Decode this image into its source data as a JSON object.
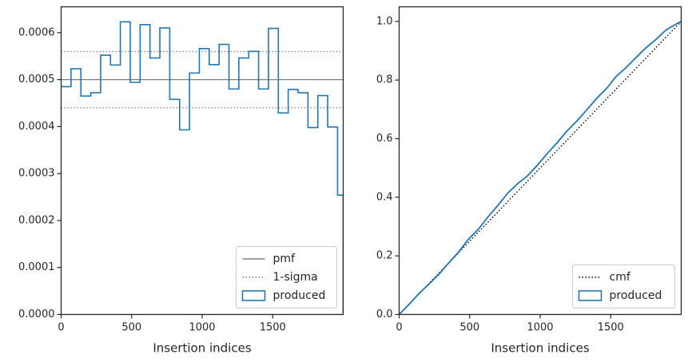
{
  "chart_data": [
    {
      "type": "step",
      "xlabel": "Insertion indices",
      "ylabel": "",
      "xlim": [
        0,
        2000
      ],
      "ylim": [
        0,
        0.000655
      ],
      "xticks": [
        0,
        500,
        1000,
        1500
      ],
      "xtick_labels": [
        "0",
        "500",
        "1000",
        "1500"
      ],
      "yticks": [
        0,
        0.0001,
        0.0002,
        0.0003,
        0.0004,
        0.0005,
        0.0006
      ],
      "ytick_labels": [
        "0.0000",
        "0.0001",
        "0.0002",
        "0.0003",
        "0.0004",
        "0.0005",
        "0.0006"
      ],
      "legend_position": "lower-right",
      "bin_edges": [
        0,
        70,
        140,
        210,
        280,
        350,
        420,
        490,
        560,
        630,
        700,
        770,
        840,
        910,
        980,
        1050,
        1120,
        1190,
        1260,
        1330,
        1400,
        1470,
        1540,
        1610,
        1680,
        1750,
        1820,
        1890,
        1960,
        2000
      ],
      "hlines": [
        {
          "name": "pmf",
          "value": 0.0005,
          "style": "solid",
          "color": "#808080"
        },
        {
          "name": "1-sigma",
          "value": 0.00056,
          "style": "dotted",
          "color": "#808080"
        },
        {
          "name": "1-sigma",
          "value": 0.00044,
          "style": "dotted",
          "color": "#808080"
        }
      ],
      "series": [
        {
          "name": "produced",
          "color": "#1f77b4",
          "values": [
            0.000485,
            0.000523,
            0.000465,
            0.000472,
            0.000552,
            0.000531,
            0.000623,
            0.000494,
            0.000617,
            0.000546,
            0.00061,
            0.000458,
            0.000393,
            0.000514,
            0.000566,
            0.000532,
            0.000575,
            0.00048,
            0.000546,
            0.00056,
            0.00048,
            0.000609,
            0.000429,
            0.000479,
            0.000472,
            0.000398,
            0.000466,
            0.000399,
            0.000254
          ]
        }
      ],
      "legend": [
        {
          "label": "pmf",
          "kind": "solid-line"
        },
        {
          "label": "1-sigma",
          "kind": "dotted-line"
        },
        {
          "label": "produced",
          "kind": "patch"
        }
      ]
    },
    {
      "type": "line",
      "xlabel": "Insertion indices",
      "ylabel": "",
      "xlim": [
        0,
        2000
      ],
      "ylim": [
        0,
        1.05
      ],
      "xticks": [
        0,
        500,
        1000,
        1500
      ],
      "xtick_labels": [
        "0",
        "500",
        "1000",
        "1500"
      ],
      "yticks": [
        0,
        0.2,
        0.4,
        0.6,
        0.8,
        1.0
      ],
      "ytick_labels": [
        "0.0",
        "0.2",
        "0.4",
        "0.6",
        "0.8",
        "1.0"
      ],
      "legend_position": "lower-right",
      "series": [
        {
          "name": "cmf",
          "style": "dotted",
          "color": "#000000",
          "x": [
            0,
            2000
          ],
          "y": [
            0,
            1.0
          ]
        },
        {
          "name": "produced",
          "style": "solid",
          "color": "#1f77b4",
          "x": [
            0,
            70,
            140,
            210,
            280,
            350,
            420,
            490,
            560,
            630,
            700,
            770,
            840,
            910,
            980,
            1050,
            1120,
            1190,
            1260,
            1330,
            1400,
            1470,
            1540,
            1610,
            1680,
            1750,
            1820,
            1890,
            1960,
            2000
          ],
          "y": [
            0,
            0.034,
            0.071,
            0.103,
            0.136,
            0.175,
            0.212,
            0.256,
            0.29,
            0.333,
            0.372,
            0.414,
            0.446,
            0.473,
            0.509,
            0.549,
            0.586,
            0.626,
            0.66,
            0.698,
            0.737,
            0.771,
            0.813,
            0.843,
            0.877,
            0.91,
            0.938,
            0.97,
            0.99,
            1.0
          ]
        }
      ],
      "legend": [
        {
          "label": "cmf",
          "kind": "dotted-line"
        },
        {
          "label": "produced",
          "kind": "patch"
        }
      ]
    }
  ]
}
